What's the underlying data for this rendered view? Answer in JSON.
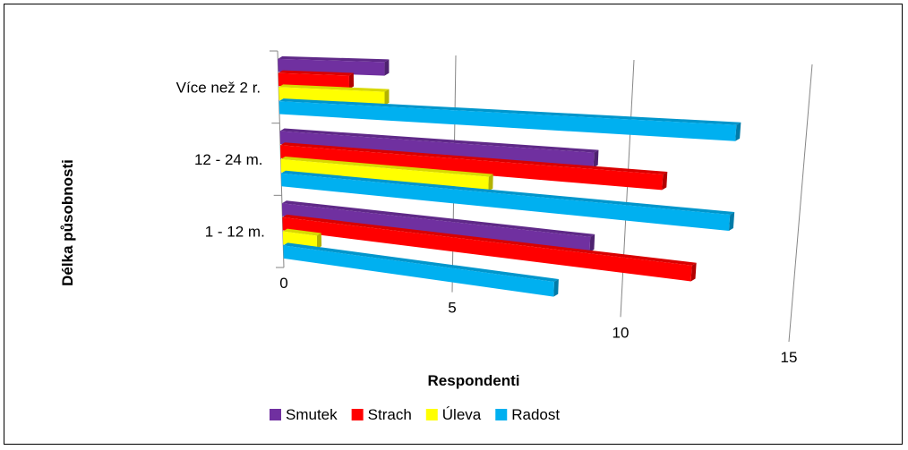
{
  "chart_data": {
    "type": "bar",
    "orientation": "horizontal",
    "style": "3d",
    "categories": [
      "1 - 12 m.",
      "12 - 24 m.",
      "Více než 2 r."
    ],
    "series": [
      {
        "name": "Smutek",
        "color": "#7030A0",
        "values": [
          9,
          9,
          3
        ]
      },
      {
        "name": "Strach",
        "color": "#FF0000",
        "values": [
          12,
          11,
          2
        ]
      },
      {
        "name": "Úleva",
        "color": "#FFFF00",
        "values": [
          1,
          6,
          3
        ]
      },
      {
        "name": "Radost",
        "color": "#00B0F0",
        "values": [
          8,
          13,
          13
        ]
      }
    ],
    "xlabel": "Respondenti",
    "ylabel": "Délka působnosti",
    "xlim": [
      0,
      15
    ],
    "xticks": [
      "0",
      "5",
      "10",
      "15"
    ],
    "grid": true,
    "legend_position": "bottom"
  }
}
